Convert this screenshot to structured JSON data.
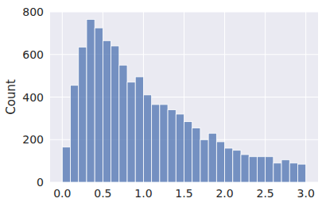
{
  "chart_data": {
    "type": "histogram",
    "y_label": "Count",
    "bins": [
      0.0,
      0.1,
      0.2,
      0.3,
      0.4,
      0.5,
      0.6,
      0.7,
      0.8,
      0.9,
      1.0,
      1.1,
      1.2,
      1.3,
      1.4,
      1.5,
      1.6,
      1.7,
      1.8,
      1.9,
      2.0,
      2.1,
      2.2,
      2.3,
      2.4,
      2.5,
      2.6,
      2.7,
      2.8,
      2.9,
      3.0
    ],
    "values": [
      165,
      455,
      635,
      765,
      725,
      665,
      640,
      550,
      470,
      495,
      410,
      365,
      365,
      340,
      320,
      285,
      255,
      200,
      230,
      190,
      160,
      150,
      130,
      120,
      120,
      120,
      90,
      105,
      90,
      85
    ],
    "color": "#4c72b0",
    "xlim": [
      -0.15,
      3.15
    ],
    "ylim": [
      0,
      800
    ],
    "xticks": [
      {
        "value": 0,
        "label": "0.0"
      },
      0.5,
      {
        "value": 1,
        "label": "1.0"
      },
      1.5,
      {
        "value": 2,
        "label": "2.0"
      },
      2.5,
      {
        "value": 3,
        "label": "3.0"
      }
    ],
    "yticks": [
      0,
      200,
      400,
      600,
      800
    ],
    "grid": true
  }
}
